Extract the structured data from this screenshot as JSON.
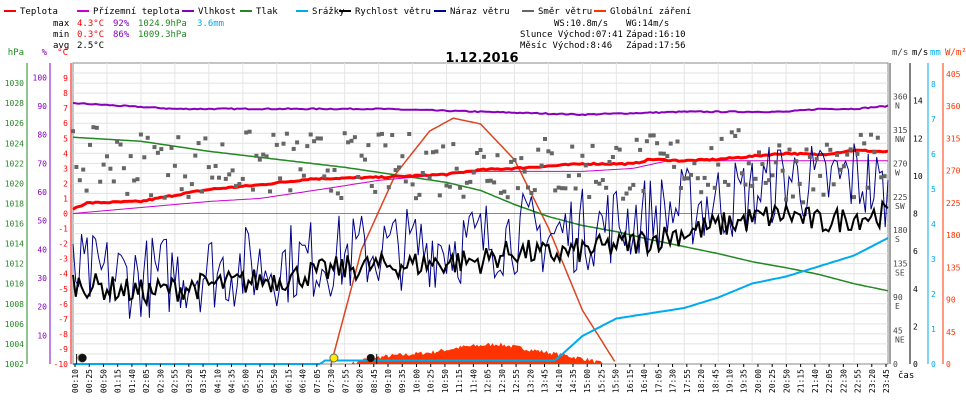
{
  "chart_data": {
    "type": "line",
    "title": "1.12.2016",
    "xlabel": "čas",
    "legend": [
      {
        "key": "teplota",
        "name": "Teplota",
        "color": "#ff0000"
      },
      {
        "key": "prizemni",
        "name": "Přízemní teplota",
        "color": "#cc00cc"
      },
      {
        "key": "vlhkost",
        "name": "Vlhkost",
        "color": "#8800bb"
      },
      {
        "key": "tlak",
        "name": "Tlak",
        "color": "#228822"
      },
      {
        "key": "srazky",
        "name": "Srážky",
        "color": "#00aaee"
      },
      {
        "key": "rychlost",
        "name": "Rychlost větru",
        "color": "#000000"
      },
      {
        "key": "naraz",
        "name": "Náraz větru",
        "color": "#000088"
      },
      {
        "key": "smer",
        "name": "Směr větru",
        "color": "#666666"
      },
      {
        "key": "zareni",
        "name": "Globální záření",
        "color": "#ff3300"
      }
    ],
    "stats": {
      "max_label": "max",
      "min_label": "min",
      "avg_label": "avg",
      "max": {
        "temp": "4.3°C",
        "hum": "92%",
        "press": "1024.9hPa",
        "rain": "3.6mm"
      },
      "min": {
        "temp": "0.3°C",
        "hum": "86%",
        "press": "1009.3hPa"
      },
      "avg": {
        "temp": "2.5°C"
      }
    },
    "info": {
      "ws": "WS:10.8m/s",
      "wg": "WG:14m/s",
      "slunce": "Slunce Východ:07:41",
      "slunce_zapad": "Západ:16:10",
      "mesic": "Měsíc  Východ:8:46",
      "mesic_zapad": "Západ:17:56"
    },
    "axes": {
      "hpa": {
        "unit": "hPa",
        "color": "#228822",
        "ticks": [
          "1030",
          "1028",
          "1026",
          "1024",
          "1022",
          "1020",
          "1018",
          "1016",
          "1014",
          "1012",
          "1010",
          "1008",
          "1006",
          "1004",
          "1002"
        ]
      },
      "pct": {
        "unit": "%",
        "color": "#8800bb",
        "ticks": [
          "100",
          "90",
          "80",
          "70",
          "60",
          "50",
          "40",
          "30",
          "20",
          "10"
        ]
      },
      "degc": {
        "unit": "°C",
        "color": "#ff0000",
        "ticks": [
          "9",
          "8",
          "7",
          "6",
          "5",
          "4",
          "3",
          "2",
          "1",
          "0",
          "-1",
          "-2",
          "-3",
          "-4",
          "-5",
          "-6",
          "-7",
          "-8",
          "-9",
          "-10"
        ]
      },
      "dir": {
        "unit": "m/s",
        "ticks": [
          "360",
          "315",
          "270",
          "225",
          "180",
          "135",
          "90",
          "45",
          "0"
        ],
        "labels": [
          "N",
          "NW",
          "W",
          "SW",
          "S",
          "SE",
          "E",
          "NE",
          ""
        ]
      },
      "ms": {
        "unit": "m/s",
        "ticks": [
          "14",
          "12",
          "10",
          "8",
          "6",
          "4",
          "2",
          "0"
        ]
      },
      "mm": {
        "unit": "mm",
        "color": "#00aaee",
        "ticks": [
          "8",
          "7",
          "6",
          "5",
          "4",
          "3",
          "2",
          "1",
          "0"
        ]
      },
      "wm2": {
        "unit": "W/m²",
        "color": "#ff3300",
        "ticks": [
          "405",
          "360",
          "315",
          "270",
          "225",
          "180",
          "135",
          "90",
          "45",
          "0"
        ]
      }
    },
    "x_ticks": [
      "00:10",
      "00:25",
      "00:50",
      "01:15",
      "01:40",
      "02:05",
      "02:30",
      "02:55",
      "03:20",
      "03:45",
      "04:10",
      "04:35",
      "05:00",
      "05:25",
      "05:50",
      "06:15",
      "06:40",
      "07:05",
      "07:30",
      "07:55",
      "08:20",
      "08:45",
      "09:10",
      "09:35",
      "10:00",
      "10:25",
      "10:50",
      "11:15",
      "11:40",
      "12:05",
      "12:30",
      "12:55",
      "13:20",
      "13:45",
      "14:10",
      "14:35",
      "15:00",
      "15:25",
      "15:50",
      "16:15",
      "16:40",
      "17:05",
      "17:30",
      "17:55",
      "18:20",
      "18:45",
      "19:10",
      "19:35",
      "20:00",
      "20:25",
      "20:50",
      "21:15",
      "21:40",
      "22:05",
      "22:30",
      "22:55",
      "23:20",
      "23:45"
    ],
    "series_keypoints": {
      "teplota_degc": [
        [
          0,
          0.3
        ],
        [
          0.4,
          0.7
        ],
        [
          2,
          0.8
        ],
        [
          3.2,
          1.3
        ],
        [
          4,
          1.6
        ],
        [
          5.5,
          1.9
        ],
        [
          7,
          2.3
        ],
        [
          9,
          2.4
        ],
        [
          11,
          2.6
        ],
        [
          12,
          2.9
        ],
        [
          13,
          3.0
        ],
        [
          15,
          3.3
        ],
        [
          16.5,
          3.3
        ],
        [
          17,
          3.6
        ],
        [
          18,
          3.5
        ],
        [
          19,
          3.6
        ],
        [
          20,
          3.8
        ],
        [
          21,
          4.0
        ],
        [
          22,
          3.9
        ],
        [
          23,
          4.2
        ],
        [
          24,
          4.1
        ]
      ],
      "prizemni_degc": [
        [
          0,
          0.0
        ],
        [
          2.5,
          0.5
        ],
        [
          4,
          0.8
        ],
        [
          5.5,
          1.0
        ],
        [
          7,
          1.5
        ],
        [
          9,
          2.2
        ],
        [
          12,
          2.8
        ],
        [
          15,
          2.8
        ],
        [
          16.5,
          3.0
        ],
        [
          17.5,
          3.5
        ],
        [
          20,
          3.5
        ],
        [
          24,
          3.5
        ]
      ],
      "vlhkost_pct": [
        [
          0,
          91
        ],
        [
          3,
          89
        ],
        [
          6,
          89
        ],
        [
          9,
          89
        ],
        [
          12,
          88
        ],
        [
          15,
          87
        ],
        [
          18,
          88
        ],
        [
          20,
          88
        ],
        [
          21,
          88
        ],
        [
          22,
          89
        ],
        [
          23,
          89
        ],
        [
          24,
          90
        ]
      ],
      "tlak_hpa": [
        [
          0,
          1024.6
        ],
        [
          2,
          1024.2
        ],
        [
          4,
          1023.2
        ],
        [
          6,
          1022.4
        ],
        [
          8,
          1021.6
        ],
        [
          10,
          1020.6
        ],
        [
          11,
          1020.1
        ],
        [
          12,
          1019.3
        ],
        [
          13,
          1017.9
        ],
        [
          14,
          1016.7
        ],
        [
          15,
          1015.8
        ],
        [
          16,
          1015.2
        ],
        [
          17,
          1014.4
        ],
        [
          18,
          1013.7
        ],
        [
          19,
          1013.0
        ],
        [
          20,
          1012.2
        ],
        [
          21,
          1011.6
        ],
        [
          22,
          1010.9
        ],
        [
          23,
          1010.0
        ],
        [
          24,
          1009.3
        ]
      ],
      "srazky_mm": [
        [
          0,
          0
        ],
        [
          7.3,
          0
        ],
        [
          7.4,
          0.1
        ],
        [
          14.2,
          0.1
        ],
        [
          15,
          0.8
        ],
        [
          16,
          1.3
        ],
        [
          18,
          1.6
        ],
        [
          19,
          1.9
        ],
        [
          20,
          2.3
        ],
        [
          21,
          2.5
        ],
        [
          22,
          2.8
        ],
        [
          23,
          3.1
        ],
        [
          24,
          3.6
        ]
      ],
      "rychlost_ms": [
        [
          0,
          4.3
        ],
        [
          2,
          3.8
        ],
        [
          4,
          4.2
        ],
        [
          6,
          4.5
        ],
        [
          8,
          5.1
        ],
        [
          10,
          5.3
        ],
        [
          12,
          5.5
        ],
        [
          13,
          6.0
        ],
        [
          14,
          5.8
        ],
        [
          16,
          6.3
        ],
        [
          17,
          6.6
        ],
        [
          18,
          7.0
        ],
        [
          20,
          7.7
        ],
        [
          21,
          8.0
        ],
        [
          22,
          7.5
        ],
        [
          23,
          7.8
        ],
        [
          24,
          8.0
        ]
      ],
      "naraz_ms": [
        [
          0,
          4.8
        ],
        [
          2,
          4.6
        ],
        [
          4,
          5.0
        ],
        [
          6,
          5.3
        ],
        [
          8,
          5.8
        ],
        [
          10,
          6.2
        ],
        [
          12,
          6.5
        ],
        [
          13,
          7.0
        ],
        [
          14,
          6.8
        ],
        [
          16,
          7.5
        ],
        [
          17,
          7.9
        ],
        [
          18,
          8.3
        ],
        [
          20,
          9.0
        ],
        [
          21,
          10.0
        ],
        [
          22,
          9.5
        ],
        [
          23,
          10.0
        ],
        [
          24,
          9.0
        ]
      ],
      "smer_deg": [
        [
          0,
          275
        ],
        [
          3,
          268
        ],
        [
          6,
          270
        ],
        [
          9,
          266
        ],
        [
          12,
          268
        ],
        [
          15,
          262
        ],
        [
          18,
          268
        ],
        [
          20,
          272
        ],
        [
          22,
          258
        ],
        [
          24,
          270
        ]
      ],
      "zareni_wm2": [
        [
          8.2,
          0
        ],
        [
          8.7,
          8
        ],
        [
          9.5,
          12
        ],
        [
          10.5,
          16
        ],
        [
          11.5,
          24
        ],
        [
          12.5,
          28
        ],
        [
          13.5,
          20
        ],
        [
          14.5,
          12
        ],
        [
          15.2,
          6
        ],
        [
          15.6,
          0
        ]
      ],
      "zareni_teor_wm2": [
        [
          7.6,
          0
        ],
        [
          8.5,
          160
        ],
        [
          9.5,
          265
        ],
        [
          10.5,
          325
        ],
        [
          11.2,
          343
        ],
        [
          12,
          335
        ],
        [
          13,
          285
        ],
        [
          14,
          190
        ],
        [
          15,
          75
        ],
        [
          16.0,
          0
        ]
      ]
    }
  }
}
